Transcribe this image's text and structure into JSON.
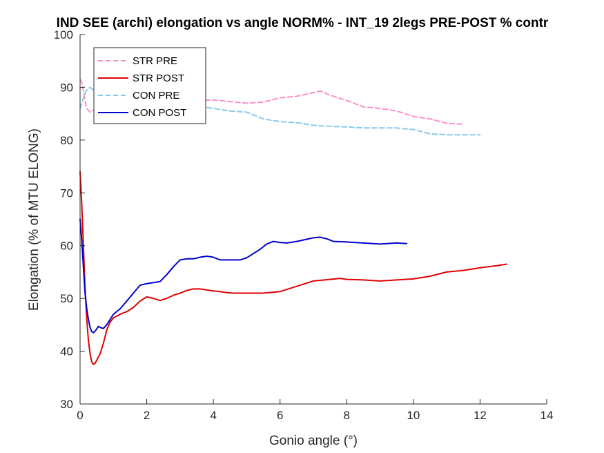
{
  "chart_data": {
    "type": "line",
    "title": "IND SEE (archi) elongation vs angle NORM% - INT_19 2legs PRE-POST % contr",
    "xlabel": "Gonio angle (°)",
    "ylabel": "Elongation (% of MTU ELONG)",
    "xlim": [
      0,
      14
    ],
    "ylim": [
      30,
      100
    ],
    "xticks": [
      0,
      2,
      4,
      6,
      8,
      10,
      12,
      14
    ],
    "yticks": [
      30,
      40,
      50,
      60,
      70,
      80,
      90,
      100
    ],
    "grid": false,
    "legend_placement": "top-left",
    "series": [
      {
        "name": "STR PRE",
        "color": "#ff8fc8",
        "dash": "dashed",
        "x": [
          0.0,
          0.05,
          0.1,
          0.15,
          0.2,
          0.3,
          0.4,
          0.5,
          0.7,
          1.0,
          1.5,
          2.0,
          2.5,
          3.0,
          3.5,
          4.0,
          4.5,
          5.0,
          5.5,
          6.0,
          6.5,
          7.0,
          7.2,
          7.5,
          8.0,
          8.5,
          9.0,
          9.5,
          10.0,
          10.5,
          11.0,
          11.5
        ],
        "y": [
          91.5,
          91.0,
          89.5,
          87.5,
          86.0,
          85.3,
          85.6,
          86.0,
          86.5,
          87.0,
          87.3,
          87.5,
          87.3,
          87.5,
          87.5,
          87.6,
          87.3,
          87.0,
          87.2,
          88.0,
          88.3,
          89.0,
          89.3,
          88.5,
          87.5,
          86.3,
          86.0,
          85.5,
          84.5,
          84.0,
          83.2,
          83.0
        ]
      },
      {
        "name": "STR POST",
        "color": "#e00000",
        "dash": "solid",
        "x": [
          0.0,
          0.05,
          0.1,
          0.15,
          0.2,
          0.25,
          0.3,
          0.35,
          0.4,
          0.45,
          0.5,
          0.6,
          0.7,
          0.8,
          0.9,
          1.0,
          1.2,
          1.4,
          1.6,
          1.8,
          2.0,
          2.2,
          2.4,
          2.6,
          2.8,
          3.0,
          3.2,
          3.4,
          3.6,
          3.8,
          4.0,
          4.2,
          4.4,
          4.6,
          5.0,
          5.5,
          6.0,
          6.5,
          7.0,
          7.5,
          7.8,
          8.0,
          8.5,
          9.0,
          9.5,
          10.0,
          10.5,
          11.0,
          11.5,
          12.0,
          12.5,
          12.8
        ],
        "y": [
          74.0,
          68.0,
          60.0,
          52.0,
          46.0,
          42.0,
          39.5,
          38.0,
          37.5,
          37.7,
          38.3,
          39.5,
          41.5,
          44.0,
          45.5,
          46.3,
          47.0,
          47.5,
          48.3,
          49.5,
          50.3,
          50.0,
          49.6,
          50.0,
          50.6,
          51.0,
          51.5,
          51.8,
          51.8,
          51.6,
          51.4,
          51.3,
          51.1,
          51.0,
          51.0,
          51.0,
          51.3,
          52.3,
          53.3,
          53.6,
          53.8,
          53.6,
          53.5,
          53.3,
          53.5,
          53.7,
          54.2,
          55.0,
          55.3,
          55.8,
          56.2,
          56.5
        ]
      },
      {
        "name": "CON PRE",
        "color": "#88c8f0",
        "dash": "dashed",
        "x": [
          0.0,
          0.1,
          0.2,
          0.3,
          0.4,
          0.5,
          0.7,
          1.0,
          1.5,
          2.0,
          2.5,
          3.0,
          3.5,
          4.0,
          4.5,
          5.0,
          5.5,
          6.0,
          6.5,
          7.0,
          7.5,
          8.0,
          8.5,
          9.0,
          9.5,
          10.0,
          10.5,
          11.0,
          11.5,
          12.0
        ],
        "y": [
          86.0,
          88.0,
          89.5,
          90.0,
          89.5,
          89.0,
          88.5,
          88.0,
          87.8,
          87.5,
          87.3,
          87.0,
          86.5,
          86.0,
          85.5,
          85.3,
          84.0,
          83.5,
          83.3,
          82.8,
          82.6,
          82.5,
          82.3,
          82.3,
          82.3,
          82.0,
          81.2,
          81.0,
          81.0,
          81.0
        ]
      },
      {
        "name": "CON POST",
        "color": "#0000cc",
        "dash": "solid",
        "x": [
          0.0,
          0.05,
          0.1,
          0.15,
          0.2,
          0.25,
          0.3,
          0.35,
          0.4,
          0.45,
          0.5,
          0.55,
          0.6,
          0.7,
          0.8,
          0.9,
          1.0,
          1.2,
          1.4,
          1.6,
          1.8,
          2.0,
          2.2,
          2.4,
          2.6,
          2.8,
          3.0,
          3.2,
          3.4,
          3.6,
          3.8,
          4.0,
          4.2,
          4.5,
          4.8,
          5.0,
          5.2,
          5.4,
          5.6,
          5.8,
          6.0,
          6.2,
          6.5,
          6.8,
          7.0,
          7.2,
          7.4,
          7.6,
          8.0,
          8.5,
          9.0,
          9.5,
          9.8
        ],
        "y": [
          65.0,
          61.0,
          56.0,
          51.0,
          48.0,
          46.0,
          44.5,
          43.7,
          43.5,
          43.8,
          44.2,
          44.7,
          44.5,
          44.3,
          45.0,
          46.0,
          47.0,
          48.0,
          49.5,
          51.0,
          52.5,
          52.8,
          53.0,
          53.2,
          54.5,
          56.0,
          57.3,
          57.5,
          57.5,
          57.8,
          58.0,
          57.8,
          57.3,
          57.3,
          57.3,
          57.7,
          58.5,
          59.3,
          60.3,
          60.8,
          60.6,
          60.5,
          60.8,
          61.2,
          61.5,
          61.6,
          61.3,
          60.8,
          60.7,
          60.5,
          60.3,
          60.5,
          60.4
        ]
      }
    ]
  }
}
